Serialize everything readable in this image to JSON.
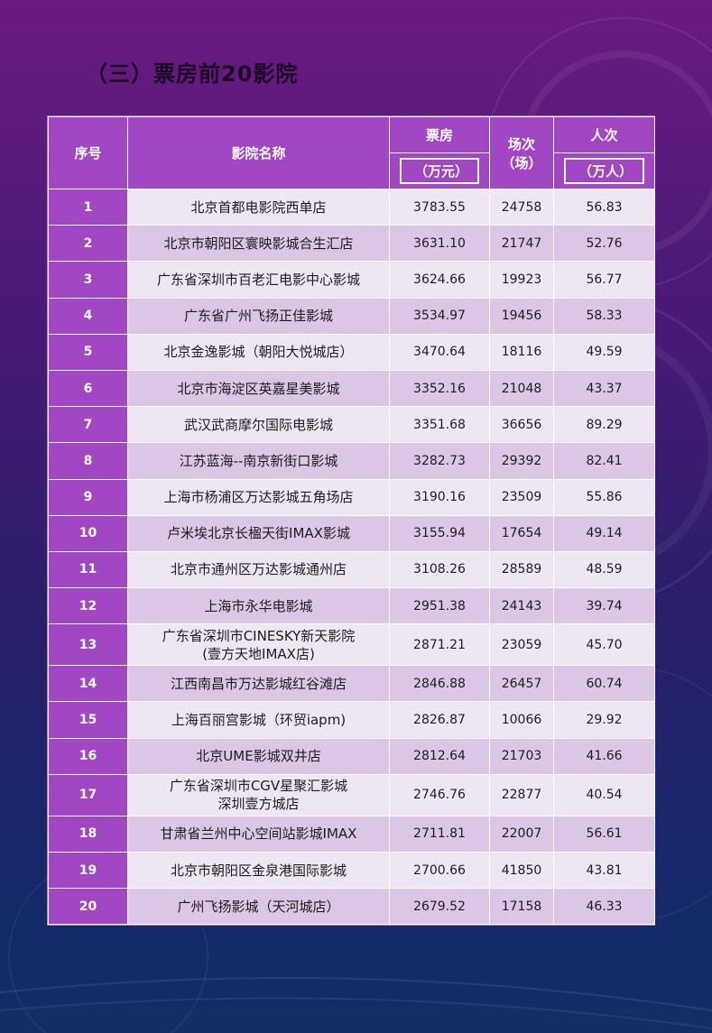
{
  "title": "（三）票房前20影院",
  "headers": {
    "index": "序号",
    "name": "影院名称",
    "box_office": "票房",
    "box_office_unit": "（万元）",
    "screenings": "场次",
    "screenings_unit": "（场）",
    "admissions": "人次",
    "admissions_unit": "（万人）"
  },
  "rows": [
    {
      "index": "1",
      "name": [
        "北京首都电影院西单店"
      ],
      "box_office": "3783.55",
      "screenings": "24758",
      "admissions": "56.83"
    },
    {
      "index": "2",
      "name": [
        "北京市朝阳区寰映影城合生汇店"
      ],
      "box_office": "3631.10",
      "screenings": "21747",
      "admissions": "52.76"
    },
    {
      "index": "3",
      "name": [
        "广东省深圳市百老汇电影中心影城"
      ],
      "box_office": "3624.66",
      "screenings": "19923",
      "admissions": "56.77"
    },
    {
      "index": "4",
      "name": [
        "广东省广州飞扬正佳影城"
      ],
      "box_office": "3534.97",
      "screenings": "19456",
      "admissions": "58.33"
    },
    {
      "index": "5",
      "name": [
        "北京金逸影城（朝阳大悦城店）"
      ],
      "box_office": "3470.64",
      "screenings": "18116",
      "admissions": "49.59"
    },
    {
      "index": "6",
      "name": [
        "北京市海淀区英嘉星美影城"
      ],
      "box_office": "3352.16",
      "screenings": "21048",
      "admissions": "43.37"
    },
    {
      "index": "7",
      "name": [
        "武汉武商摩尔国际电影城"
      ],
      "box_office": "3351.68",
      "screenings": "36656",
      "admissions": "89.29"
    },
    {
      "index": "8",
      "name": [
        "江苏蓝海--南京新街口影城"
      ],
      "box_office": "3282.73",
      "screenings": "29392",
      "admissions": "82.41"
    },
    {
      "index": "9",
      "name": [
        "上海市杨浦区万达影城五角场店"
      ],
      "box_office": "3190.16",
      "screenings": "23509",
      "admissions": "55.86"
    },
    {
      "index": "10",
      "name": [
        "卢米埃北京长楹天街IMAX影城"
      ],
      "box_office": "3155.94",
      "screenings": "17654",
      "admissions": "49.14"
    },
    {
      "index": "11",
      "name": [
        "北京市通州区万达影城通州店"
      ],
      "box_office": "3108.26",
      "screenings": "28589",
      "admissions": "48.59"
    },
    {
      "index": "12",
      "name": [
        "上海市永华电影城"
      ],
      "box_office": "2951.38",
      "screenings": "24143",
      "admissions": "39.74"
    },
    {
      "index": "13",
      "name": [
        "广东省深圳市CINESKY新天影院",
        "(壹方天地IMAX店)"
      ],
      "box_office": "2871.21",
      "screenings": "23059",
      "admissions": "45.70"
    },
    {
      "index": "14",
      "name": [
        "江西南昌市万达影城红谷滩店"
      ],
      "box_office": "2846.88",
      "screenings": "26457",
      "admissions": "60.74"
    },
    {
      "index": "15",
      "name": [
        "上海百丽宫影城（环贸iapm)"
      ],
      "box_office": "2826.87",
      "screenings": "10066",
      "admissions": "29.92"
    },
    {
      "index": "16",
      "name": [
        "北京UME影城双井店"
      ],
      "box_office": "2812.64",
      "screenings": "21703",
      "admissions": "41.66"
    },
    {
      "index": "17",
      "name": [
        "广东省深圳市CGV星聚汇影城",
        "深圳壹方城店"
      ],
      "box_office": "2746.76",
      "screenings": "22877",
      "admissions": "40.54"
    },
    {
      "index": "18",
      "name": [
        "甘肃省兰州中心空间站影城IMAX"
      ],
      "box_office": "2711.81",
      "screenings": "22007",
      "admissions": "56.61"
    },
    {
      "index": "19",
      "name": [
        "北京市朝阳区金泉港国际影城"
      ],
      "box_office": "2700.66",
      "screenings": "41850",
      "admissions": "43.81"
    },
    {
      "index": "20",
      "name": [
        "广州飞扬影城（天河城店）"
      ],
      "box_office": "2679.52",
      "screenings": "17158",
      "admissions": "46.33"
    }
  ]
}
